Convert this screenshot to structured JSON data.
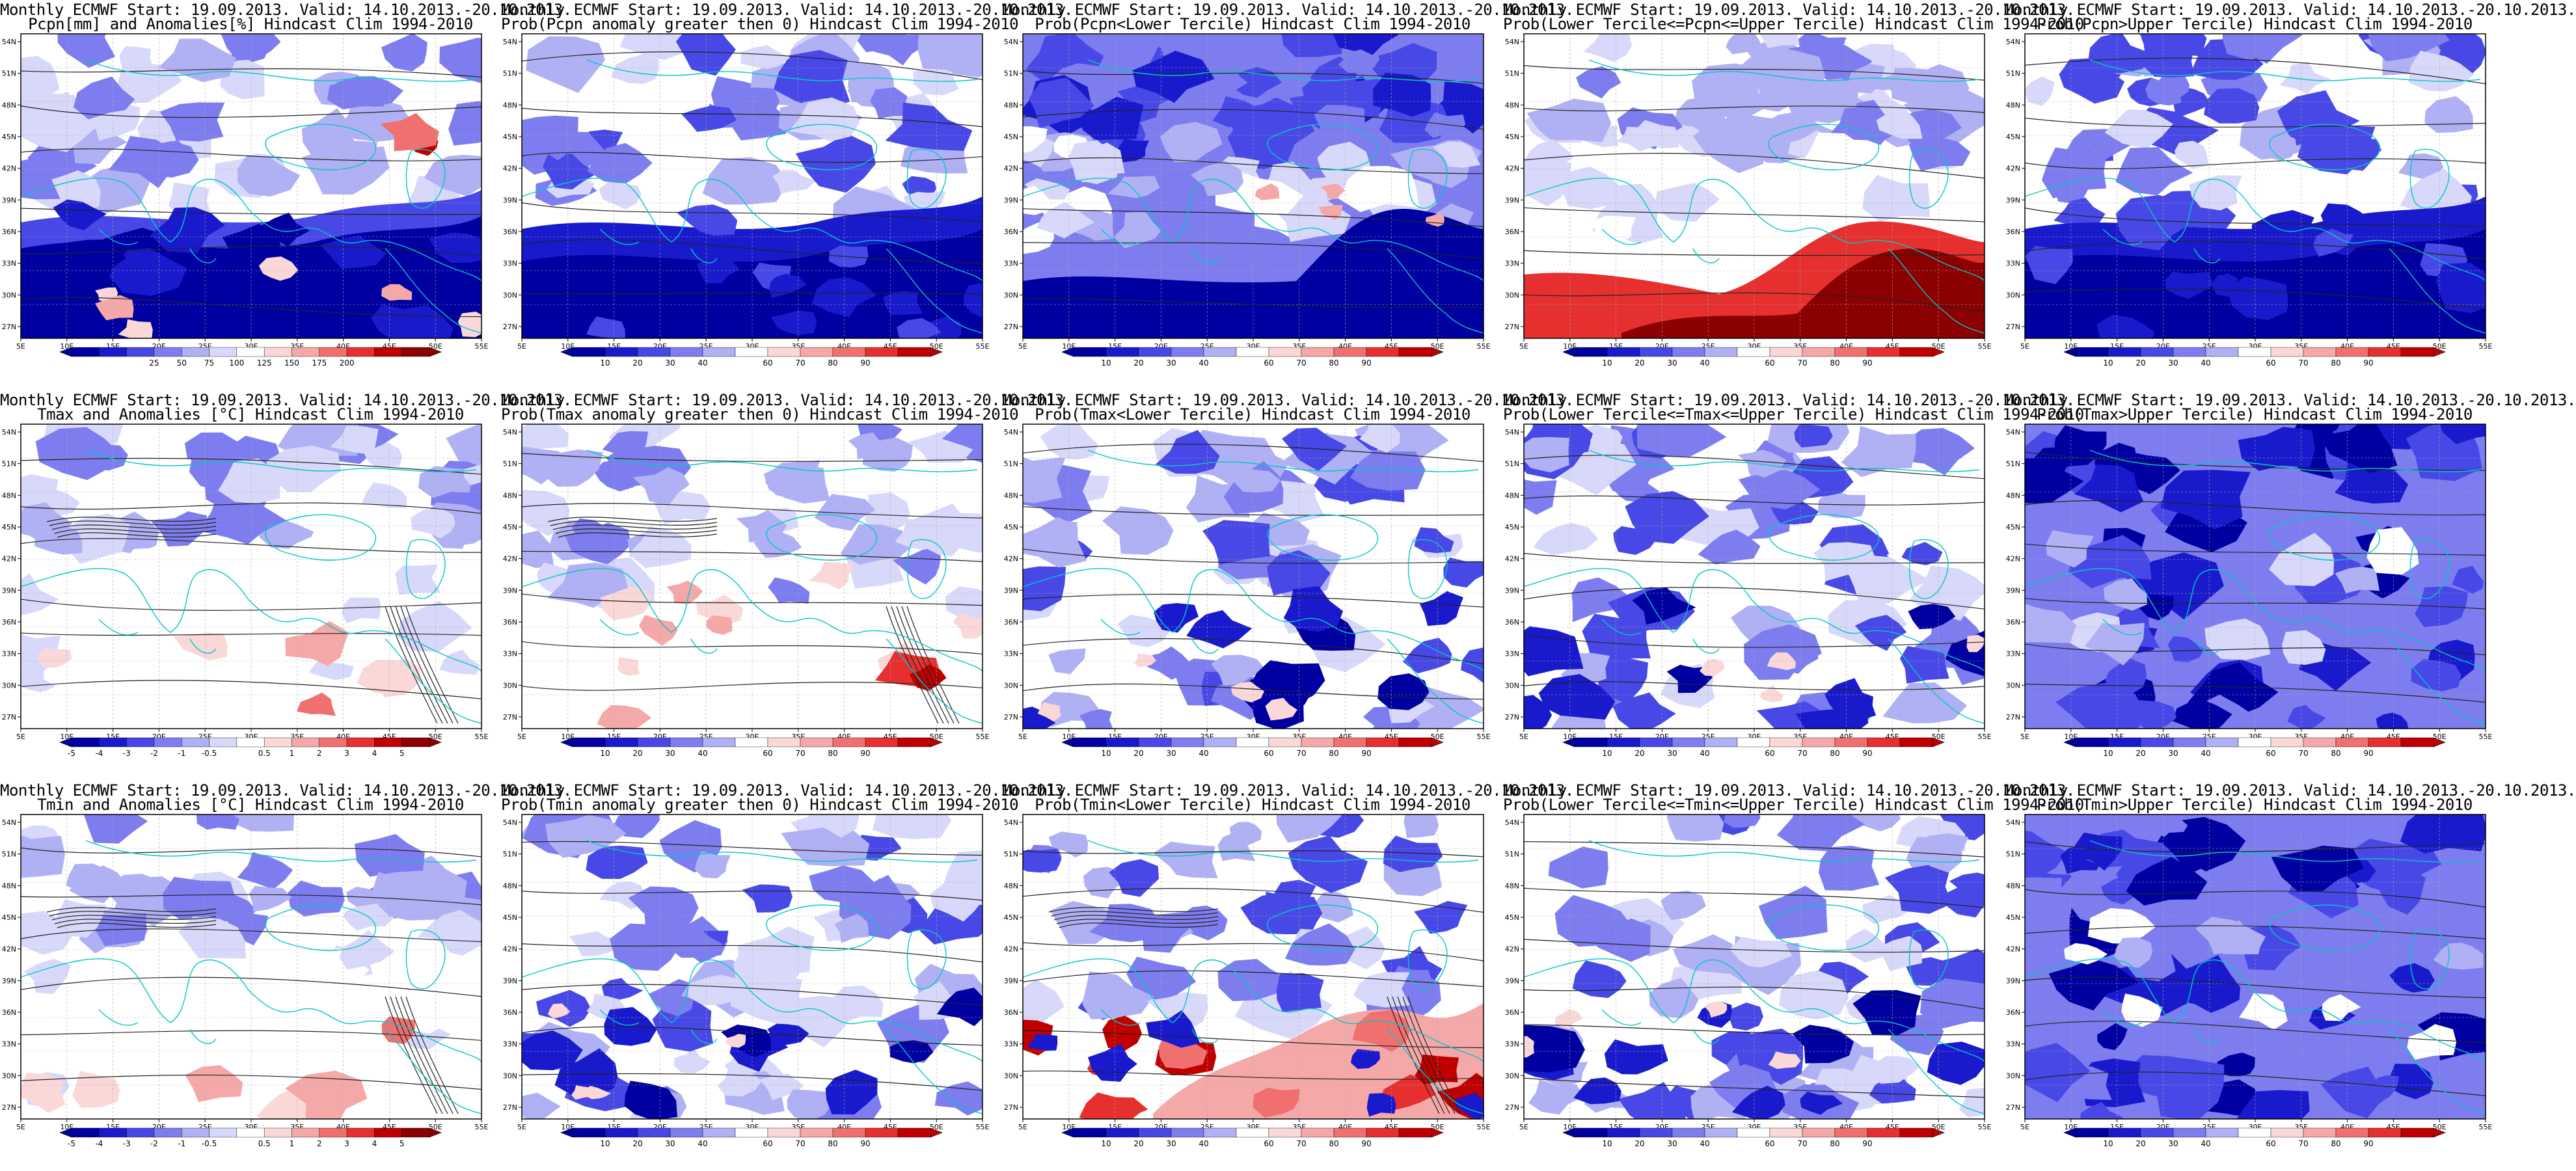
{
  "lon_labels": [
    "5E",
    "10E",
    "15E",
    "20E",
    "25E",
    "30E",
    "35E",
    "40E",
    "45E",
    "50E",
    "55E"
  ],
  "lat_labels": [
    "54N",
    "51N",
    "48N",
    "45N",
    "42N",
    "39N",
    "36N",
    "33N",
    "30N",
    "27N"
  ],
  "colors": {
    "blues": [
      "#0000a0",
      "#1a1acd",
      "#4848e6",
      "#7d7df0",
      "#b0b0f5",
      "#d8d8fa"
    ],
    "reds": [
      "#fad8d8",
      "#f5a8a8",
      "#f07070",
      "#e63030",
      "#c00000",
      "#8b0000"
    ],
    "coast": "#00c8c8",
    "contour": "#222222"
  },
  "panels": [
    {
      "id": "p1",
      "line1": "Monthly ECMWF Start: 19.09.2013. Valid: 14.10.2013.-20.10.2013.",
      "line2": "Pcpn[mm] and Anomalies[%] Hindcast Clim 1994-2010",
      "type": "anom_pcp",
      "cbar": {
        "kind": "anom",
        "labels": [
          "25",
          "50",
          "75",
          "100",
          "125",
          "150",
          "175",
          "200"
        ],
        "idx": [
          3,
          4,
          5,
          6,
          7,
          8,
          9,
          10
        ]
      }
    },
    {
      "id": "p2",
      "line1": "Monthly ECMWF Start: 19.09.2013. Valid: 14.10.2013.-20.10.2013.",
      "line2": "Prob(Pcpn anomaly greater then 0) Hindcast Clim 1994-2010",
      "type": "prob_blue",
      "cbar": {
        "kind": "prob",
        "labels": [
          "10",
          "20",
          "30",
          "40",
          "60",
          "70",
          "80",
          "90"
        ]
      }
    },
    {
      "id": "p3",
      "line1": "Monthly ECMWF Start: 19.09.2013. Valid: 14.10.2013.-20.10.2013.",
      "line2": "Prob(Pcpn<Lower Tercile) Hindcast Clim 1994-2010",
      "type": "lower_pcp",
      "cbar": {
        "kind": "prob",
        "labels": [
          "10",
          "20",
          "30",
          "40",
          "60",
          "70",
          "80",
          "90"
        ]
      }
    },
    {
      "id": "p4",
      "line1": "Monthly ECMWF Start: 19.09.2013. Valid: 14.10.2013.-20.10.2013.",
      "line2": "Prob(Lower Tercile<=Pcpn<=Upper Tercile) Hindcast Clim 1994-2010",
      "type": "mid_pcp",
      "cbar": {
        "kind": "prob",
        "labels": [
          "10",
          "20",
          "30",
          "40",
          "60",
          "70",
          "80",
          "90"
        ]
      }
    },
    {
      "id": "p5",
      "line1": "Monthly ECMWF Start: 19.09.2013. Valid: 14.10.2013.-20.10.2013.",
      "line2": "Prob(Pcpn>Upper Tercile) Hindcast Clim 1994-2010",
      "type": "prob_blue",
      "cbar": {
        "kind": "prob",
        "labels": [
          "10",
          "20",
          "30",
          "40",
          "60",
          "70",
          "80",
          "90"
        ]
      }
    },
    {
      "id": "p6",
      "line1": "Monthly ECMWF Start: 19.09.2013. Valid: 14.10.2013.-20.10.2013.",
      "line2": "Tmax and Anomalies [°C] Hindcast Clim 1994-2010",
      "type": "anom_t",
      "cbar": {
        "kind": "anom",
        "labels": [
          "-5",
          "-4",
          "-3",
          "-2",
          "-1",
          "-0.5",
          "0.5",
          "1",
          "2",
          "3",
          "4",
          "5"
        ],
        "idx": [
          0,
          1,
          2,
          3,
          4,
          5,
          7,
          8,
          9,
          10,
          11,
          12
        ]
      }
    },
    {
      "id": "p7",
      "line1": "Monthly ECMWF Start: 19.09.2013. Valid: 14.10.2013.-20.10.2013.",
      "line2": "Prob(Tmax anomaly greater then 0) Hindcast Clim 1994-2010",
      "type": "prob_light",
      "cbar": {
        "kind": "prob",
        "labels": [
          "10",
          "20",
          "30",
          "40",
          "60",
          "70",
          "80",
          "90"
        ]
      }
    },
    {
      "id": "p8",
      "line1": "Monthly ECMWF Start: 19.09.2013. Valid: 14.10.2013.-20.10.2013.",
      "line2": "Prob(Tmax<Lower Tercile) Hindcast Clim 1994-2010",
      "type": "prob_mid",
      "cbar": {
        "kind": "prob",
        "labels": [
          "10",
          "20",
          "30",
          "40",
          "60",
          "70",
          "80",
          "90"
        ]
      }
    },
    {
      "id": "p9",
      "line1": "Monthly ECMWF Start: 19.09.2013. Valid: 14.10.2013.-20.10.2013.",
      "line2": "Prob(Lower Tercile<=Tmax<=Upper Tercile) Hindcast Clim 1994-2010",
      "type": "prob_mid",
      "cbar": {
        "kind": "prob",
        "labels": [
          "10",
          "20",
          "30",
          "40",
          "60",
          "70",
          "80",
          "90"
        ]
      }
    },
    {
      "id": "p10",
      "line1": "Monthly ECMWF Start: 19.09.2013. Valid: 14.10.2013.-20.10.2013.",
      "line2": "Prob(Tmax>Upper Tercile) Hindcast Clim 1994-2010",
      "type": "prob_dark",
      "cbar": {
        "kind": "prob",
        "labels": [
          "10",
          "20",
          "30",
          "40",
          "60",
          "70",
          "80",
          "90"
        ]
      }
    },
    {
      "id": "p11",
      "line1": "Monthly ECMWF Start: 19.09.2013. Valid: 14.10.2013.-20.10.2013.",
      "line2": "Tmin and Anomalies [°C] Hindcast Clim 1994-2010",
      "type": "anom_t",
      "cbar": {
        "kind": "anom",
        "labels": [
          "-5",
          "-4",
          "-3",
          "-2",
          "-1",
          "-0.5",
          "0.5",
          "1",
          "2",
          "3",
          "4",
          "5"
        ],
        "idx": [
          0,
          1,
          2,
          3,
          4,
          5,
          7,
          8,
          9,
          10,
          11,
          12
        ]
      }
    },
    {
      "id": "p12",
      "line1": "Monthly ECMWF Start: 19.09.2013. Valid: 14.10.2013.-20.10.2013.",
      "line2": "Prob(Tmin anomaly greater then 0) Hindcast Clim 1994-2010",
      "type": "prob_mid",
      "cbar": {
        "kind": "prob",
        "labels": [
          "10",
          "20",
          "30",
          "40",
          "60",
          "70",
          "80",
          "90"
        ]
      }
    },
    {
      "id": "p13",
      "line1": "Monthly ECMWF Start: 19.09.2013. Valid: 14.10.2013.-20.10.2013.",
      "line2": "Prob(Tmin<Lower Tercile) Hindcast Clim 1994-2010",
      "type": "lower_tmin",
      "cbar": {
        "kind": "prob",
        "labels": [
          "10",
          "20",
          "30",
          "40",
          "60",
          "70",
          "80",
          "90"
        ]
      }
    },
    {
      "id": "p14",
      "line1": "Monthly ECMWF Start: 19.09.2013. Valid: 14.10.2013.-20.10.2013.",
      "line2": "Prob(Lower Tercile<=Tmin<=Upper Tercile) Hindcast Clim 1994-2010",
      "type": "prob_mid",
      "cbar": {
        "kind": "prob",
        "labels": [
          "10",
          "20",
          "30",
          "40",
          "60",
          "70",
          "80",
          "90"
        ]
      }
    },
    {
      "id": "p15",
      "line1": "Monthly ECMWF Start: 19.09.2013. Valid: 14.10.2013.-20.10.2013.",
      "line2": "Prob(Tmin>Upper Tercile) Hindcast Clim 1994-2010",
      "type": "prob_dark",
      "cbar": {
        "kind": "prob",
        "labels": [
          "10",
          "20",
          "30",
          "40",
          "60",
          "70",
          "80",
          "90"
        ]
      }
    }
  ]
}
